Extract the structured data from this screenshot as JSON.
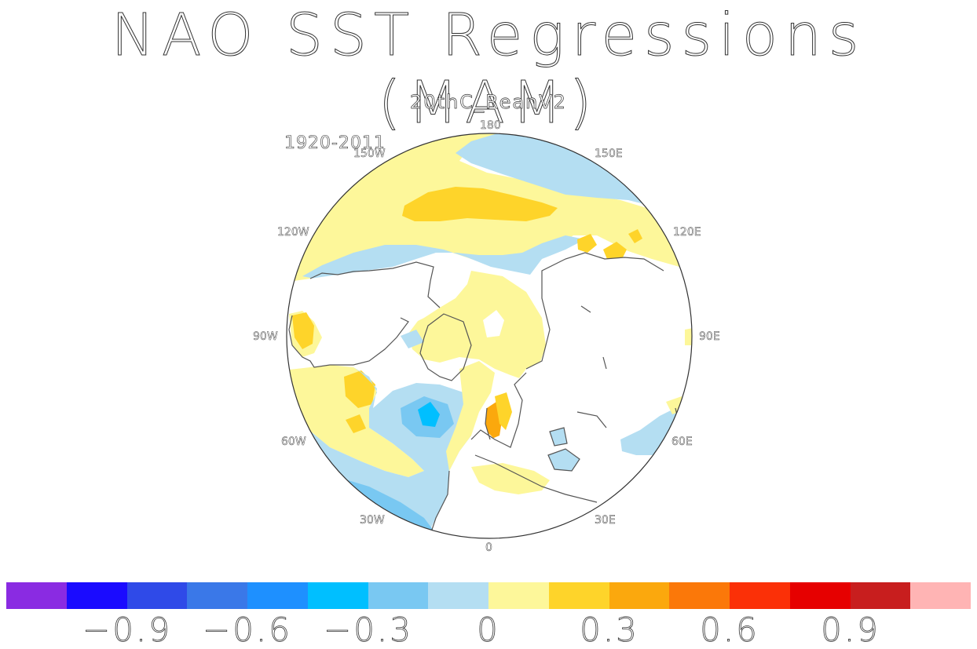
{
  "title": "NAO SST Regressions (MAM)",
  "subtitle": "20thC_ReanV2",
  "period": "1920-2011",
  "longitude_labels": {
    "lon_180": "180",
    "lon_150e": "150E",
    "lon_120e": "120E",
    "lon_90e": "90E",
    "lon_60e": "60E",
    "lon_30e": "30E",
    "lon_0": "0",
    "lon_30w": "30W",
    "lon_60w": "60W",
    "lon_90w": "90W",
    "lon_120w": "120W",
    "lon_150w": "150W"
  },
  "projection": "north polar stereographic",
  "colorbar": {
    "colors": [
      "#8a2be2",
      "#1a0bff",
      "#2f4ae8",
      "#3a78e8",
      "#1e90ff",
      "#00bfff",
      "#79c8f2",
      "#b4def2",
      "#fdf79a",
      "#fed42a",
      "#fba80d",
      "#fb7809",
      "#fb3007",
      "#e60000",
      "#c81e1e",
      "#ffb4b4"
    ],
    "labels": [
      "-0.9",
      "-0.6",
      "-0.3",
      "0",
      "0.3",
      "0.6",
      "0.9"
    ],
    "label_text": [
      "−0.9",
      "−0.6",
      "−0.3",
      "0",
      "0.3",
      "0.6",
      "0.9"
    ]
  },
  "colors": {
    "ocean_positive_weak": "#fdf79a",
    "ocean_positive_mid": "#fed42a",
    "ocean_positive_strong": "#fba80d",
    "ocean_negative_weak": "#b4def2",
    "ocean_negative_mid": "#79c8f2",
    "ocean_negative_strong": "#00bfff",
    "land": "#ffffff",
    "coastline": "#555555"
  }
}
